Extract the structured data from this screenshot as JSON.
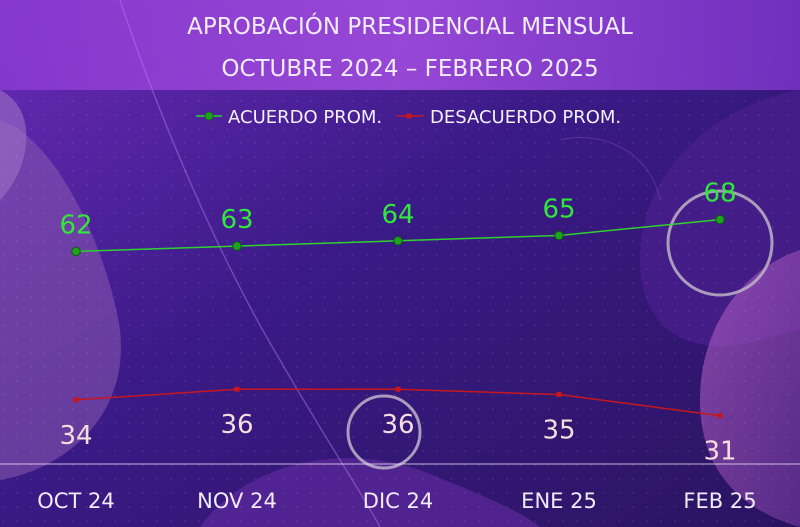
{
  "chart_data": {
    "type": "line",
    "title": "APROBACIÓN PRESIDENCIAL MENSUAL",
    "subtitle": "OCTUBRE 2024 – FEBRERO 2025",
    "categories": [
      "OCT 24",
      "NOV 24",
      "DIC 24",
      "ENE 25",
      "FEB 25"
    ],
    "series": [
      {
        "name": "ACUERDO PROM.",
        "values": [
          62,
          63,
          64,
          65,
          68
        ],
        "color": "#2fd12f"
      },
      {
        "name": "DESACUERDO PROM.",
        "values": [
          34,
          36,
          36,
          35,
          31
        ],
        "color": "#c8161d"
      }
    ],
    "xlabel": "",
    "ylabel": "",
    "ylim": [
      0,
      100
    ],
    "grid": false,
    "legend": "top-center",
    "data_labels": true
  }
}
